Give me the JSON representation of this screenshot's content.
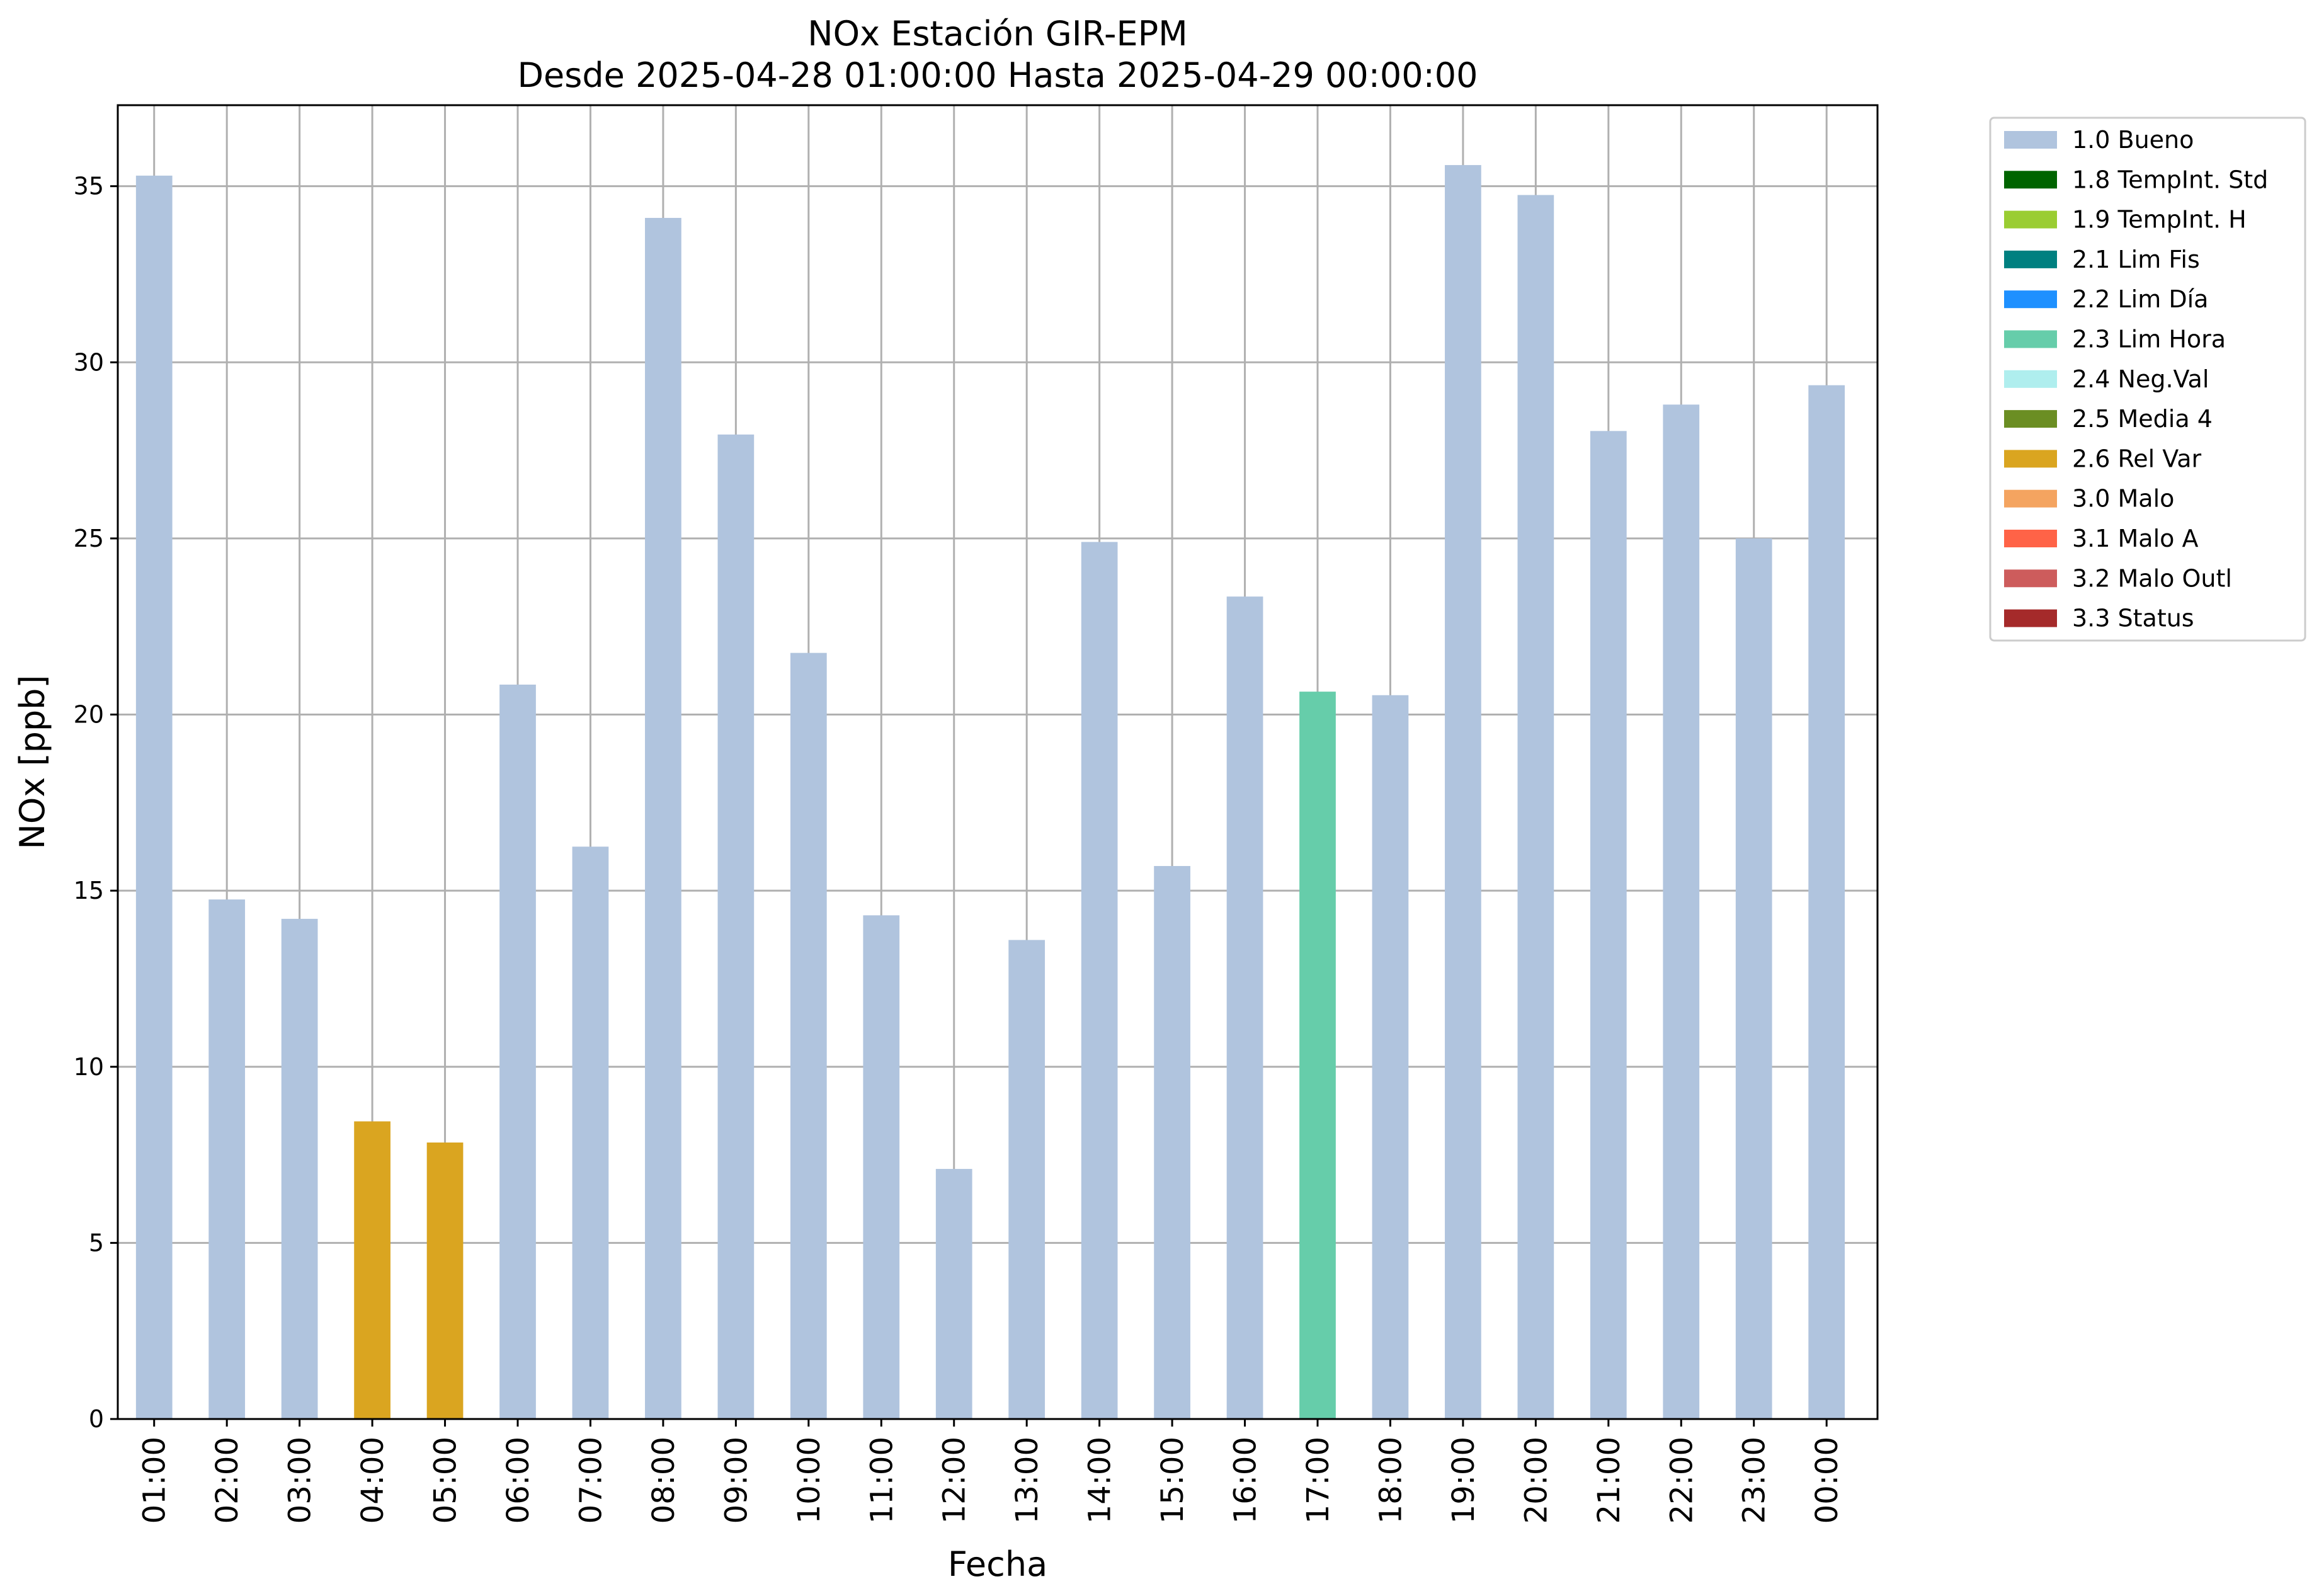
{
  "chart_data": {
    "type": "bar",
    "title": "NOx Estación GIR-EPM",
    "subtitle": "Desde 2025-04-28 01:00:00 Hasta 2025-04-29 00:00:00",
    "xlabel": "Fecha",
    "ylabel": "NOx [ppb]",
    "ylim": [
      0,
      37.3
    ],
    "yticks": [
      0,
      5,
      10,
      15,
      20,
      25,
      30,
      35
    ],
    "grid": true,
    "legend_position": "outside-top-right",
    "categories": [
      "01:00",
      "02:00",
      "03:00",
      "04:00",
      "05:00",
      "06:00",
      "07:00",
      "08:00",
      "09:00",
      "10:00",
      "11:00",
      "12:00",
      "13:00",
      "14:00",
      "15:00",
      "16:00",
      "17:00",
      "18:00",
      "19:00",
      "20:00",
      "21:00",
      "22:00",
      "23:00",
      "00:00"
    ],
    "values": [
      35.3,
      14.75,
      14.2,
      8.45,
      7.85,
      20.85,
      16.25,
      34.1,
      27.95,
      21.75,
      14.3,
      7.1,
      13.6,
      24.9,
      15.7,
      23.35,
      20.65,
      20.55,
      35.6,
      34.75,
      28.05,
      28.8,
      25.0,
      29.35
    ],
    "flags": [
      "1.0 Bueno",
      "1.0 Bueno",
      "1.0 Bueno",
      "2.6 Rel Var",
      "2.6 Rel Var",
      "1.0 Bueno",
      "1.0 Bueno",
      "1.0 Bueno",
      "1.0 Bueno",
      "1.0 Bueno",
      "1.0 Bueno",
      "1.0 Bueno",
      "1.0 Bueno",
      "1.0 Bueno",
      "1.0 Bueno",
      "1.0 Bueno",
      "2.3 Lim Hora",
      "1.0 Bueno",
      "1.0 Bueno",
      "1.0 Bueno",
      "1.0 Bueno",
      "1.0 Bueno",
      "1.0 Bueno",
      "1.0 Bueno"
    ],
    "legend": [
      {
        "label": "1.0 Bueno",
        "color": "#b0c4de"
      },
      {
        "label": "1.8 TempInt. Std",
        "color": "#006400"
      },
      {
        "label": "1.9 TempInt. H",
        "color": "#9acd32"
      },
      {
        "label": "2.1 Lim Fis",
        "color": "#008080"
      },
      {
        "label": "2.2 Lim Día",
        "color": "#1e90ff"
      },
      {
        "label": "2.3 Lim Hora",
        "color": "#66cdaa"
      },
      {
        "label": "2.4 Neg.Val",
        "color": "#afeeee"
      },
      {
        "label": "2.5 Media 4",
        "color": "#6b8e23"
      },
      {
        "label": "2.6 Rel Var",
        "color": "#daa520"
      },
      {
        "label": "3.0 Malo",
        "color": "#f4a460"
      },
      {
        "label": "3.1 Malo A",
        "color": "#ff6347"
      },
      {
        "label": "3.2 Malo Outl",
        "color": "#cd5c5c"
      },
      {
        "label": "3.3 Status",
        "color": "#a52a2a"
      }
    ]
  }
}
